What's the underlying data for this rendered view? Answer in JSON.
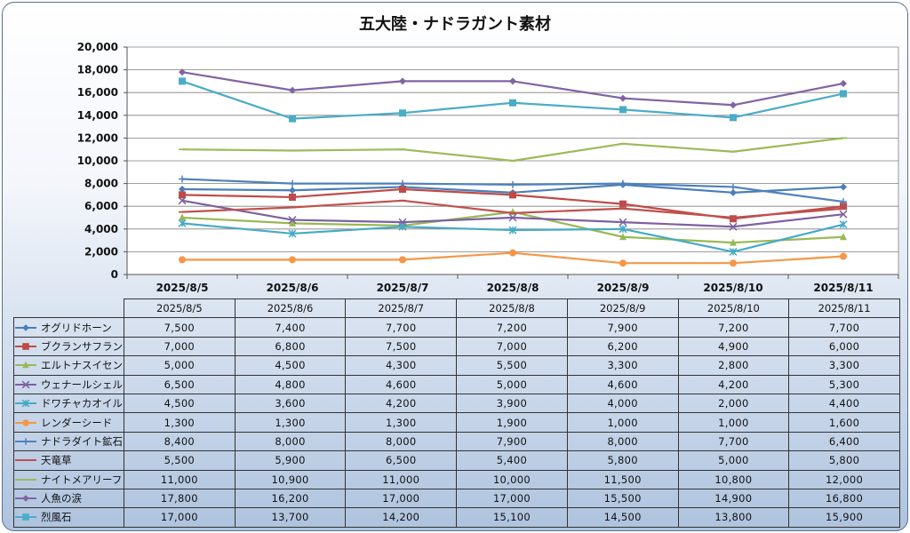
{
  "chart_data": {
    "type": "line",
    "title": "五大陸・ナドラガント素材",
    "categories": [
      "2025/8/5",
      "2025/8/6",
      "2025/8/7",
      "2025/8/8",
      "2025/8/9",
      "2025/8/10",
      "2025/8/11"
    ],
    "ylim": [
      0,
      20000
    ],
    "yticks": [
      0,
      2000,
      4000,
      6000,
      8000,
      10000,
      12000,
      14000,
      16000,
      18000,
      20000
    ],
    "ytick_labels": [
      "0",
      "2,000",
      "4,000",
      "6,000",
      "8,000",
      "10,000",
      "12,000",
      "14,000",
      "16,000",
      "18,000",
      "20,000"
    ],
    "grid": true,
    "legend": "data-table",
    "series": [
      {
        "name": "オグリドホーン",
        "color": "#4a7ebb",
        "marker": "diamond",
        "values": [
          7500,
          7400,
          7700,
          7200,
          7900,
          7200,
          7700
        ],
        "labels": [
          "7,500",
          "7,400",
          "7,700",
          "7,200",
          "7,900",
          "7,200",
          "7,700"
        ]
      },
      {
        "name": "ブクランサフラン",
        "color": "#be4b48",
        "marker": "square",
        "values": [
          7000,
          6800,
          7500,
          7000,
          6200,
          4900,
          6000
        ],
        "labels": [
          "7,000",
          "6,800",
          "7,500",
          "7,000",
          "6,200",
          "4,900",
          "6,000"
        ]
      },
      {
        "name": "エルトナスイセン",
        "color": "#98b954",
        "marker": "triangle",
        "values": [
          5000,
          4500,
          4300,
          5500,
          3300,
          2800,
          3300
        ],
        "labels": [
          "5,000",
          "4,500",
          "4,300",
          "5,500",
          "3,300",
          "2,800",
          "3,300"
        ]
      },
      {
        "name": "ウェナールシェル",
        "color": "#7d60a0",
        "marker": "x",
        "values": [
          6500,
          4800,
          4600,
          5000,
          4600,
          4200,
          5300
        ],
        "labels": [
          "6,500",
          "4,800",
          "4,600",
          "5,000",
          "4,600",
          "4,200",
          "5,300"
        ]
      },
      {
        "name": "ドワチャカオイル",
        "color": "#46aac5",
        "marker": "star",
        "values": [
          4500,
          3600,
          4200,
          3900,
          4000,
          2000,
          4400
        ],
        "labels": [
          "4,500",
          "3,600",
          "4,200",
          "3,900",
          "4,000",
          "2,000",
          "4,400"
        ]
      },
      {
        "name": "レンダーシード",
        "color": "#f79646",
        "marker": "circle",
        "values": [
          1300,
          1300,
          1300,
          1900,
          1000,
          1000,
          1600
        ],
        "labels": [
          "1,300",
          "1,300",
          "1,300",
          "1,900",
          "1,000",
          "1,000",
          "1,600"
        ]
      },
      {
        "name": "ナドラダイト鉱石",
        "color": "#4f81bd",
        "marker": "plus",
        "values": [
          8400,
          8000,
          8000,
          7900,
          8000,
          7700,
          6400
        ],
        "labels": [
          "8,400",
          "8,000",
          "8,000",
          "7,900",
          "8,000",
          "7,700",
          "6,400"
        ]
      },
      {
        "name": "天竜草",
        "color": "#c0504d",
        "marker": "dash",
        "values": [
          5500,
          5900,
          6500,
          5400,
          5800,
          5000,
          5800
        ],
        "labels": [
          "5,500",
          "5,900",
          "6,500",
          "5,400",
          "5,800",
          "5,000",
          "5,800"
        ]
      },
      {
        "name": "ナイトメアリーフ",
        "color": "#9bbb59",
        "marker": "dash",
        "values": [
          11000,
          10900,
          11000,
          10000,
          11500,
          10800,
          12000
        ],
        "labels": [
          "11,000",
          "10,900",
          "11,000",
          "10,000",
          "11,500",
          "10,800",
          "12,000"
        ]
      },
      {
        "name": "人魚の涙",
        "color": "#8064a2",
        "marker": "diamond",
        "values": [
          17800,
          16200,
          17000,
          17000,
          15500,
          14900,
          16800
        ],
        "labels": [
          "17,800",
          "16,200",
          "17,000",
          "17,000",
          "15,500",
          "14,900",
          "16,800"
        ]
      },
      {
        "name": "烈風石",
        "color": "#4bacc6",
        "marker": "square",
        "values": [
          17000,
          13700,
          14200,
          15100,
          14500,
          13800,
          15900
        ],
        "labels": [
          "17,000",
          "13,700",
          "14,200",
          "15,100",
          "14,500",
          "13,800",
          "15,900"
        ]
      }
    ]
  }
}
